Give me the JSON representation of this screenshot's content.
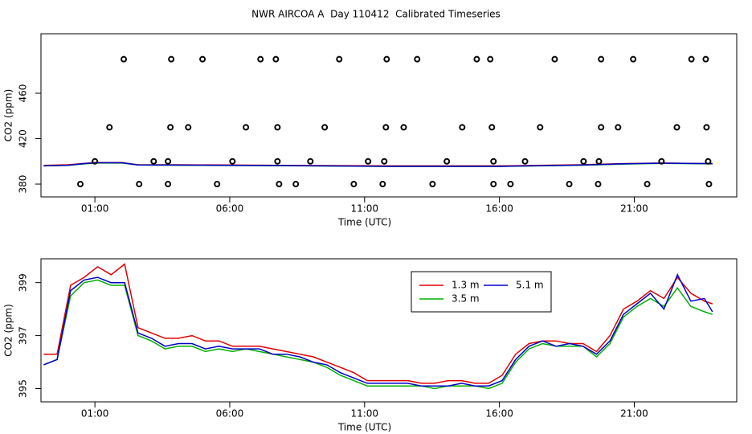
{
  "chart_data": [
    {
      "type": "scatter",
      "title": "NWR AIRCOA A  Day 110412  Calibrated Timeseries",
      "x": [
        0.46,
        2.64,
        3.71,
        5.53,
        7.83,
        8.45,
        10.6,
        11.67,
        13.52,
        15.78,
        16.41,
        18.59,
        19.66,
        21.48,
        23.77,
        1.0,
        3.18,
        3.71,
        6.1,
        7.77,
        8.99,
        11.13,
        11.73,
        14.05,
        15.78,
        16.95,
        19.12,
        19.69,
        22.01,
        23.74,
        1.54,
        3.8,
        4.46,
        6.6,
        7.77,
        9.52,
        11.79,
        12.45,
        14.62,
        15.72,
        17.51,
        19.77,
        20.4,
        22.58,
        23.68,
        2.07,
        3.83,
        4.99,
        7.14,
        7.71,
        10.06,
        11.82,
        12.95,
        15.16,
        15.66,
        18.05,
        19.77,
        20.96,
        23.12,
        23.65
      ],
      "values": [
        380,
        380,
        380,
        380,
        380,
        380,
        380,
        380,
        380,
        380,
        380,
        380,
        380,
        380,
        380,
        400,
        400,
        400,
        400,
        400,
        400,
        400,
        400,
        400,
        400,
        400,
        400,
        400,
        400,
        400,
        430,
        430,
        430,
        430,
        430,
        430,
        430,
        430,
        430,
        430,
        430,
        430,
        430,
        430,
        430,
        490,
        490,
        490,
        490,
        490,
        490,
        490,
        490,
        490,
        490,
        490,
        490,
        490,
        490,
        490
      ],
      "color": "#000000",
      "lines": [
        {
          "color": "#e00000",
          "x": [
            -0.9,
            0.0,
            0.5,
            1.0,
            2.0,
            2.6,
            4,
            8,
            12,
            16,
            19,
            20.5,
            22,
            23.9
          ],
          "values": [
            396.5,
            397,
            398,
            399,
            399,
            397,
            397,
            396.5,
            396,
            396,
            397,
            398,
            398.5,
            398
          ]
        },
        {
          "color": "#00b000",
          "x": [
            -0.9,
            0.0,
            0.5,
            1.0,
            2.0,
            2.6,
            4,
            8,
            12,
            16,
            19,
            20.5,
            22,
            23.9
          ],
          "values": [
            396,
            396.5,
            397.5,
            398.5,
            398.5,
            396.8,
            396.6,
            396.2,
            395.5,
            395.5,
            396.6,
            397.6,
            398.2,
            397.8
          ]
        },
        {
          "color": "#0000cc",
          "x": [
            -0.9,
            0.0,
            0.5,
            1.0,
            2.0,
            2.6,
            4,
            8,
            12,
            16,
            19,
            20.5,
            22,
            23.9
          ],
          "values": [
            396,
            396.6,
            397.8,
            398.8,
            398.8,
            396.9,
            396.7,
            396.3,
            395.6,
            395.6,
            396.7,
            397.8,
            398.4,
            398
          ]
        }
      ],
      "xlim": [
        -1.0,
        24.8
      ],
      "ylim": [
        368.7,
        512.4
      ],
      "xticks": [
        {
          "value": 1,
          "label": "01:00"
        },
        {
          "value": 6,
          "label": "06:00"
        },
        {
          "value": 11,
          "label": "11:00"
        },
        {
          "value": 16,
          "label": "16:00"
        },
        {
          "value": 21,
          "label": "21:00"
        }
      ],
      "yticks": [
        380,
        420,
        460
      ],
      "xlabel": "Time (UTC)",
      "ylabel": "CO2 (ppm)"
    },
    {
      "type": "line",
      "x": [
        -0.9,
        -0.4,
        0.1,
        0.6,
        1.1,
        1.6,
        2.1,
        2.6,
        3.1,
        3.6,
        4.1,
        4.6,
        5.1,
        5.6,
        6.1,
        6.6,
        7.1,
        7.6,
        8.1,
        8.6,
        9.1,
        9.6,
        10.1,
        10.6,
        11.1,
        11.6,
        12.1,
        12.6,
        13.1,
        13.6,
        14.1,
        14.6,
        15.1,
        15.6,
        16.1,
        16.6,
        17.1,
        17.6,
        18.1,
        18.6,
        19.1,
        19.6,
        20.1,
        20.6,
        21.1,
        21.6,
        22.1,
        22.6,
        23.1,
        23.6,
        23.9
      ],
      "series": [
        {
          "name": "1.3 m",
          "color": "#e00000",
          "values": [
            396.3,
            396.3,
            398.9,
            399.2,
            399.6,
            399.3,
            399.7,
            397.3,
            397.1,
            396.9,
            396.9,
            397.0,
            396.8,
            396.8,
            396.6,
            396.6,
            396.6,
            396.5,
            396.4,
            396.3,
            396.2,
            396.0,
            395.8,
            395.6,
            395.3,
            395.3,
            395.3,
            395.3,
            395.2,
            395.2,
            395.3,
            395.3,
            395.2,
            395.2,
            395.5,
            396.3,
            396.7,
            396.8,
            396.8,
            396.7,
            396.7,
            396.4,
            397.0,
            398.0,
            398.3,
            398.7,
            398.4,
            399.2,
            398.6,
            398.3,
            398.2
          ]
        },
        {
          "name": "3.5 m",
          "color": "#00b000",
          "values": [
            395.9,
            396.1,
            398.5,
            399.0,
            399.1,
            398.9,
            398.9,
            397.0,
            396.8,
            396.5,
            396.6,
            396.6,
            396.4,
            396.5,
            396.4,
            396.5,
            396.4,
            396.3,
            396.2,
            396.1,
            396.0,
            395.8,
            395.5,
            395.3,
            395.1,
            395.1,
            395.1,
            395.1,
            395.1,
            395.0,
            395.1,
            395.1,
            395.1,
            395.0,
            395.2,
            396.0,
            396.5,
            396.7,
            396.6,
            396.6,
            396.6,
            396.2,
            396.7,
            397.7,
            398.1,
            398.4,
            398.1,
            398.8,
            398.1,
            397.9,
            397.8
          ]
        },
        {
          "name": "5.1 m",
          "color": "#0000cc",
          "values": [
            395.9,
            396.1,
            398.7,
            399.1,
            399.2,
            399.0,
            399.0,
            397.1,
            396.9,
            396.6,
            396.7,
            396.7,
            396.5,
            396.6,
            396.5,
            396.5,
            396.5,
            396.3,
            396.3,
            396.2,
            396.0,
            395.9,
            395.6,
            395.4,
            395.2,
            395.2,
            395.2,
            395.2,
            395.1,
            395.1,
            395.1,
            395.2,
            395.1,
            395.1,
            395.3,
            396.1,
            396.6,
            396.8,
            396.6,
            396.7,
            396.6,
            396.3,
            396.8,
            397.8,
            398.2,
            398.6,
            398.0,
            399.3,
            398.3,
            398.4,
            397.9
          ]
        }
      ],
      "xlim": [
        -1.0,
        24.8
      ],
      "ylim": [
        394.5,
        399.9
      ],
      "xticks": [
        {
          "value": 1,
          "label": "01:00"
        },
        {
          "value": 6,
          "label": "06:00"
        },
        {
          "value": 11,
          "label": "11:00"
        },
        {
          "value": 16,
          "label": "16:00"
        },
        {
          "value": 21,
          "label": "21:00"
        }
      ],
      "yticks": [
        395,
        397,
        399
      ],
      "xlabel": "Time (UTC)",
      "ylabel": "CO2 (ppm)",
      "legend": "top"
    }
  ]
}
